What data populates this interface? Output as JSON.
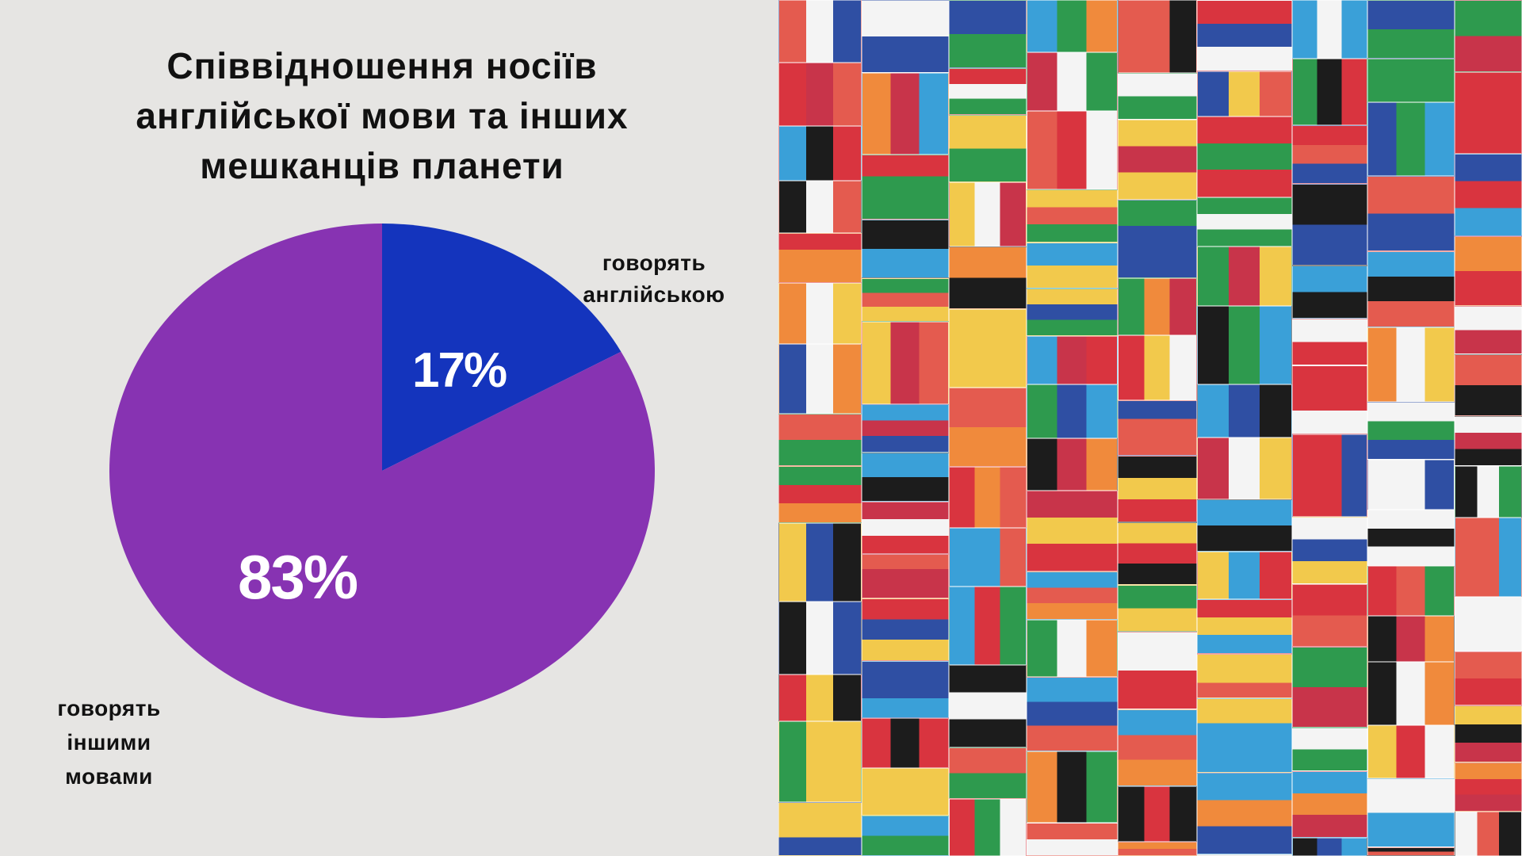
{
  "chart_data": {
    "type": "pie",
    "title_lines": [
      "Співвідношення носіїв",
      "англійської мови та інших",
      "мешканців планети"
    ],
    "slices": [
      {
        "label_lines": [
          "говорять",
          "англійською"
        ],
        "value": 17,
        "display": "17%",
        "color": "#1434bd"
      },
      {
        "label_lines": [
          "говорять",
          "іншими",
          "мовами"
        ],
        "value": 83,
        "display": "83%",
        "color": "#8733b2"
      }
    ],
    "start_angle": "top",
    "direction": "clockwise",
    "legend": "none"
  },
  "collage": {
    "image": "world-flags-collage",
    "palette": [
      "#d9343f",
      "#f4f4f4",
      "#2f4fa3",
      "#2e9a4e",
      "#f2c94c",
      "#e45b4f",
      "#1c1c1c",
      "#3aa0d8",
      "#c8344a",
      "#f08a3c"
    ]
  },
  "colors": {
    "background": "#e6e5e3"
  }
}
